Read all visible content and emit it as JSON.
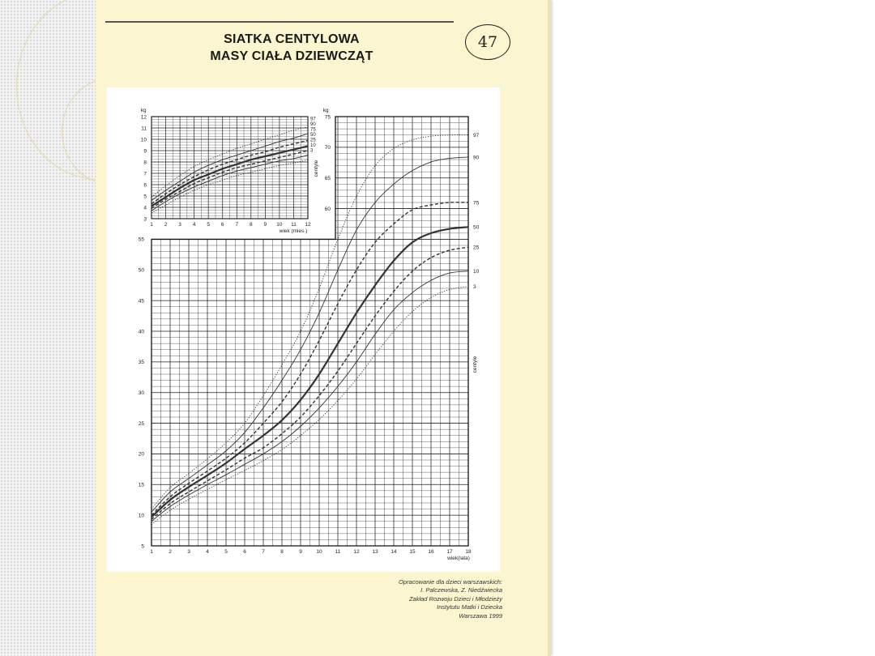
{
  "page": {
    "title_line1": "SIATKA CENTYLOWA",
    "title_line2": "MASY CIAŁA DZIEWCZĄT",
    "page_number": "47",
    "credits": [
      "Opracowanie dla dzieci warszawskich:",
      "I. Palczewska, Z. Niedźwiecka",
      "Zakład Rozwoju Dzieci i Młodzieży",
      "Instytutu Matki i Dziecka",
      "Warszawa 1999"
    ]
  },
  "colors": {
    "page": "#fbf6cf",
    "chart_bg": "#ffffff",
    "grid": "#222222",
    "curve": "#333333"
  },
  "chart_data": [
    {
      "type": "line",
      "title": "",
      "xlabel": "wiek (mies.)",
      "ylabel": "kg",
      "right_axis_label": "centyle",
      "xlim": [
        1,
        12
      ],
      "ylim": [
        3,
        12
      ],
      "x_ticks": [
        1,
        2,
        3,
        4,
        5,
        6,
        7,
        8,
        9,
        10,
        11,
        12
      ],
      "y_ticks": [
        3,
        4,
        5,
        6,
        7,
        8,
        9,
        10,
        11,
        12
      ],
      "grid": true,
      "x": [
        1,
        2,
        3,
        4,
        5,
        6,
        7,
        8,
        9,
        10,
        11,
        12
      ],
      "series": [
        {
          "name": "97",
          "style": "dotted",
          "values": [
            4.9,
            5.9,
            6.8,
            7.6,
            8.2,
            8.7,
            9.2,
            9.6,
            10.0,
            10.4,
            10.8,
            11.1
          ]
        },
        {
          "name": "90",
          "style": "solid",
          "values": [
            4.6,
            5.5,
            6.3,
            7.1,
            7.7,
            8.2,
            8.6,
            9.0,
            9.4,
            9.8,
            10.1,
            10.5
          ]
        },
        {
          "name": "75",
          "style": "dashed",
          "values": [
            4.3,
            5.2,
            6.0,
            6.7,
            7.3,
            7.8,
            8.2,
            8.6,
            8.9,
            9.3,
            9.6,
            9.9
          ]
        },
        {
          "name": "50",
          "style": "bold",
          "values": [
            4.1,
            4.9,
            5.7,
            6.4,
            6.9,
            7.4,
            7.8,
            8.2,
            8.5,
            8.8,
            9.1,
            9.4
          ]
        },
        {
          "name": "25",
          "style": "dashed",
          "values": [
            3.9,
            4.7,
            5.4,
            6.1,
            6.6,
            7.1,
            7.5,
            7.8,
            8.1,
            8.4,
            8.7,
            9.0
          ]
        },
        {
          "name": "10",
          "style": "solid",
          "values": [
            3.7,
            4.5,
            5.2,
            5.8,
            6.3,
            6.8,
            7.2,
            7.5,
            7.8,
            8.1,
            8.3,
            8.6
          ]
        },
        {
          "name": "3",
          "style": "dotted",
          "values": [
            3.5,
            4.2,
            4.9,
            5.5,
            6.0,
            6.4,
            6.8,
            7.1,
            7.4,
            7.7,
            7.9,
            8.2
          ]
        }
      ]
    },
    {
      "type": "line",
      "title": "",
      "xlabel": "wiek(lata)",
      "ylabel": "kg",
      "right_axis_label": "centyle",
      "xlim": [
        1,
        18
      ],
      "ylim": [
        5,
        75
      ],
      "x_ticks": [
        1,
        2,
        3,
        4,
        5,
        6,
        7,
        8,
        9,
        10,
        11,
        12,
        13,
        14,
        15,
        16,
        17,
        18
      ],
      "y_ticks_lower": [
        5,
        10,
        15,
        20,
        25,
        30,
        35,
        40,
        45,
        50,
        55
      ],
      "y_ticks_upper": [
        60,
        65,
        70,
        75
      ],
      "grid": true,
      "x": [
        1,
        2,
        3,
        4,
        5,
        6,
        7,
        8,
        9,
        10,
        11,
        12,
        13,
        14,
        15,
        16,
        17,
        18
      ],
      "series": [
        {
          "name": "97",
          "style": "dotted",
          "values": [
            11.0,
            14.5,
            16.8,
            19.2,
            21.8,
            25.0,
            29.5,
            34.5,
            40.0,
            47.0,
            55.0,
            62.0,
            67.0,
            69.8,
            71.2,
            71.8,
            72.0,
            72.0
          ]
        },
        {
          "name": "90",
          "style": "solid",
          "values": [
            10.5,
            13.8,
            16.0,
            18.2,
            20.5,
            23.5,
            27.5,
            32.0,
            37.0,
            43.0,
            50.0,
            56.5,
            61.0,
            64.0,
            66.2,
            67.6,
            68.2,
            68.4
          ]
        },
        {
          "name": "75",
          "style": "dashed",
          "values": [
            10.0,
            13.0,
            15.2,
            17.2,
            19.3,
            21.8,
            25.0,
            28.5,
            33.0,
            38.5,
            44.5,
            50.0,
            54.5,
            57.5,
            59.8,
            60.6,
            61.0,
            61.0
          ]
        },
        {
          "name": "50",
          "style": "bold",
          "values": [
            9.7,
            12.5,
            14.6,
            16.5,
            18.5,
            20.8,
            23.0,
            25.5,
            28.8,
            33.0,
            38.0,
            43.0,
            47.5,
            51.5,
            54.5,
            56.0,
            56.7,
            57.0
          ]
        },
        {
          "name": "25",
          "style": "dashed",
          "values": [
            9.3,
            11.9,
            13.8,
            15.6,
            17.4,
            19.3,
            21.0,
            23.3,
            26.0,
            29.5,
            33.5,
            38.0,
            42.5,
            46.5,
            49.8,
            52.0,
            53.2,
            53.7
          ]
        },
        {
          "name": "10",
          "style": "solid",
          "values": [
            9.0,
            11.4,
            13.3,
            15.0,
            16.6,
            18.3,
            20.0,
            22.0,
            24.5,
            27.5,
            31.0,
            35.0,
            39.5,
            43.5,
            46.3,
            48.3,
            49.5,
            49.8
          ]
        },
        {
          "name": "3",
          "style": "dotted",
          "values": [
            8.5,
            10.8,
            12.6,
            14.2,
            15.8,
            17.3,
            18.9,
            20.7,
            23.0,
            25.6,
            28.7,
            32.2,
            36.2,
            40.0,
            43.2,
            45.5,
            46.8,
            47.3
          ]
        }
      ]
    }
  ]
}
